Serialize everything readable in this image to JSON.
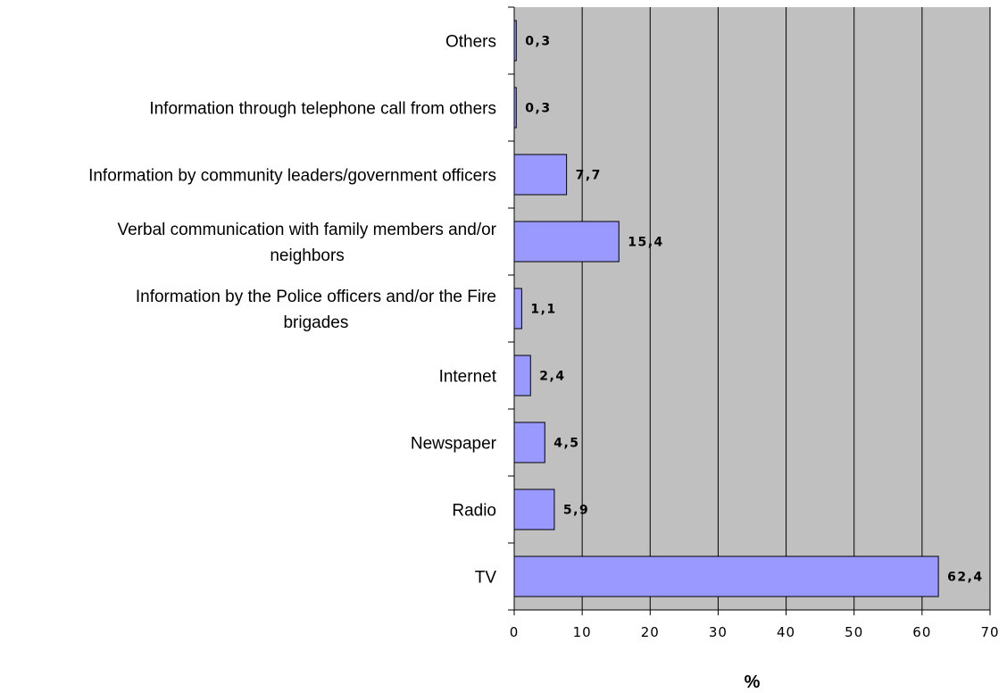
{
  "chart_data": {
    "type": "bar",
    "orientation": "horizontal",
    "categories": [
      "TV",
      "Radio",
      "Newspaper",
      "Internet",
      "Information by the Police officers and/or the Fire brigades",
      "Verbal communication with family members and/or neighbors",
      "Information by community leaders/government officers",
      "Information through telephone call from others",
      "Others"
    ],
    "category_label_lines": [
      [
        "TV"
      ],
      [
        "Radio"
      ],
      [
        "Newspaper"
      ],
      [
        "Internet"
      ],
      [
        "Information by the Police officers and/or the Fire",
        "brigades"
      ],
      [
        "Verbal communication with family members and/or",
        "neighbors"
      ],
      [
        "Information by community leaders/government officers"
      ],
      [
        "Information through telephone call from others"
      ],
      [
        "Others"
      ]
    ],
    "values": [
      62.4,
      5.9,
      4.5,
      2.4,
      1.1,
      15.4,
      7.7,
      0.3,
      0.3
    ],
    "data_labels": [
      "62,4",
      "5,9",
      "4,5",
      "2,4",
      "1,1",
      "15,4",
      "7,7",
      "0,3",
      "0,3"
    ],
    "xlabel": "%",
    "xlim": [
      0,
      70
    ],
    "xticks": [
      "0",
      "10",
      "20",
      "30",
      "40",
      "50",
      "60",
      "70"
    ],
    "grid": true,
    "legend": false,
    "colors": {
      "bar_fill": "#9999ff",
      "plot_background": "#c0c0c0",
      "gridline": "#000000"
    }
  }
}
